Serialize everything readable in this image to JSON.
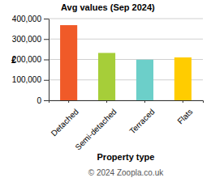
{
  "chart_data": {
    "type": "bar",
    "title": "Avg values (Sep 2024)",
    "xlabel": "Property type",
    "ylabel": "£",
    "categories": [
      "Detached",
      "Semi-detached",
      "Terraced",
      "Flats"
    ],
    "values": [
      368000,
      232000,
      199000,
      210000
    ],
    "colors": [
      "#f05a28",
      "#a6ce39",
      "#6ccfc9",
      "#ffcc00"
    ],
    "ylim": [
      0,
      400000
    ],
    "yticks": [
      0,
      {
        "value": 100000,
        "label": "100,000"
      },
      {
        "value": 200000,
        "label": "200,000"
      },
      {
        "value": 300000,
        "label": "300,000"
      },
      {
        "value": 400000,
        "label": "400,000"
      }
    ],
    "grid": true,
    "annotations": [
      "© 2024 Zoopla.co.uk"
    ]
  }
}
